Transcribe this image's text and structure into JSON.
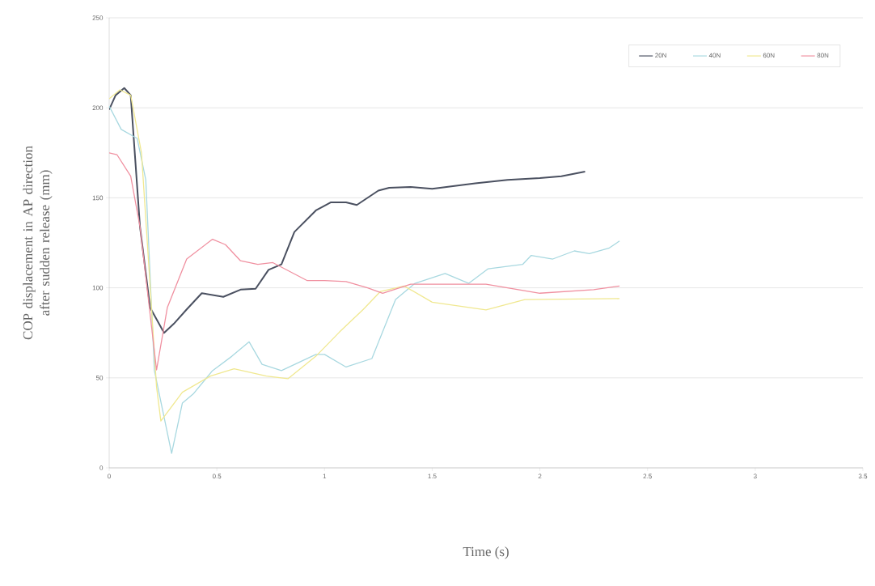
{
  "chart_data": {
    "type": "line",
    "xlabel": "Time (s)",
    "ylabel": "COP displacement in AP direction after sudden release (mm)",
    "xlim": [
      0,
      3.5
    ],
    "ylim": [
      0,
      250
    ],
    "xticks": [
      0,
      0.5,
      1,
      1.5,
      2,
      2.5,
      3,
      3.5
    ],
    "yticks": [
      0,
      50,
      100,
      150,
      200,
      250
    ],
    "grid": "y",
    "legend": "top right",
    "line_style": "solid",
    "series": [
      {
        "name": "20N",
        "color": "#4a5060",
        "x": [
          0,
          0.03,
          0.07,
          0.1,
          0.143,
          0.19,
          0.255,
          0.3,
          0.36,
          0.43,
          0.53,
          0.61,
          0.68,
          0.74,
          0.8,
          0.86,
          0.96,
          1.03,
          1.1,
          1.15,
          1.25,
          1.3,
          1.4,
          1.5,
          1.7,
          1.85,
          2.0,
          2.1,
          2.21
        ],
        "values": [
          199,
          207,
          211,
          207,
          134,
          89,
          75,
          80,
          88,
          97,
          95,
          99,
          99.5,
          110,
          113,
          131,
          143,
          147.5,
          147.5,
          146,
          154,
          155.6,
          156,
          155,
          158,
          160,
          161,
          162,
          164.6
        ]
      },
      {
        "name": "40N",
        "color": "#a8d8e0",
        "x": [
          0,
          0.056,
          0.13,
          0.17,
          0.21,
          0.29,
          0.34,
          0.39,
          0.48,
          0.57,
          0.65,
          0.71,
          0.8,
          0.96,
          1.0,
          1.1,
          1.22,
          1.33,
          1.42,
          1.56,
          1.67,
          1.76,
          1.92,
          1.96,
          2.06,
          2.16,
          2.23,
          2.32,
          2.37
        ],
        "values": [
          201,
          188,
          183,
          160,
          54,
          8,
          36,
          41,
          54,
          62,
          70,
          57.5,
          54,
          63,
          63,
          56,
          60.7,
          93.5,
          102.5,
          108,
          102.5,
          110.6,
          113,
          118,
          116,
          120.5,
          119,
          122,
          126
        ]
      },
      {
        "name": "60N",
        "color": "#f0e890",
        "x": [
          0,
          0.05,
          0.1,
          0.15,
          0.18,
          0.22,
          0.24,
          0.34,
          0.47,
          0.58,
          0.73,
          0.83,
          0.96,
          1.07,
          1.18,
          1.26,
          1.37,
          1.5,
          1.75,
          1.93,
          2.37
        ],
        "values": [
          205,
          210,
          207,
          175,
          120,
          45,
          26,
          42,
          51,
          55,
          51,
          49.5,
          62,
          75.5,
          88,
          98,
          101,
          92,
          87.7,
          93.5,
          94
        ]
      },
      {
        "name": "80N",
        "color": "#f090a0",
        "x": [
          0,
          0.036,
          0.1,
          0.143,
          0.22,
          0.27,
          0.36,
          0.48,
          0.54,
          0.61,
          0.69,
          0.76,
          0.92,
          1.0,
          1.1,
          1.2,
          1.27,
          1.4,
          1.75,
          2.0,
          2.25,
          2.37
        ],
        "values": [
          175,
          174,
          162,
          134,
          54.4,
          89,
          116,
          127,
          124,
          115,
          113,
          114,
          104,
          104,
          103.5,
          100,
          97,
          102,
          102,
          97,
          99,
          101
        ]
      }
    ]
  }
}
